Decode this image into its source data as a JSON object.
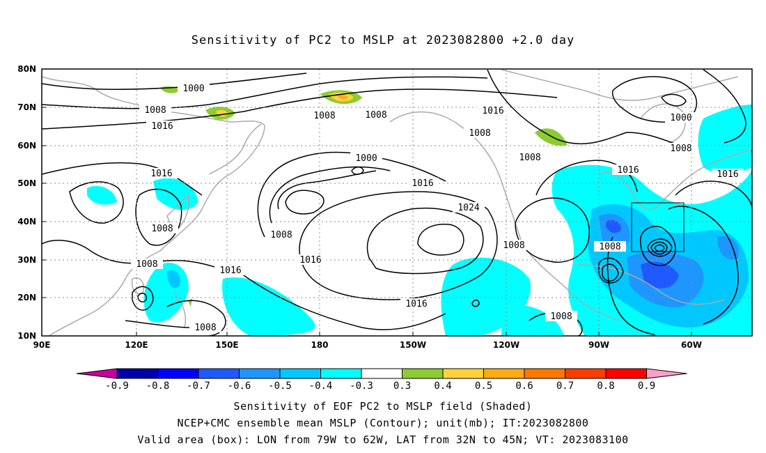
{
  "title": "Sensitivity of PC2 to MSLP at 2023082800 +2.0 day",
  "map": {
    "lon_labels": [
      "90E",
      "120E",
      "150E",
      "180",
      "150W",
      "120W",
      "90W",
      "60W"
    ],
    "lat_labels": [
      "80N",
      "70N",
      "60N",
      "50N",
      "40N",
      "30N",
      "20N",
      "10N"
    ],
    "contour_labels": [
      "1000",
      "1008",
      "1016",
      "1008",
      "1008",
      "1016",
      "1008",
      "1000",
      "1016",
      "1024",
      "1016",
      "1016",
      "1008",
      "1016",
      "1008",
      "1008",
      "1008",
      "1016",
      "1008",
      "1000",
      "1008",
      "1016",
      "1008",
      "1016",
      "1008"
    ],
    "valid_box": {
      "lon": [
        -79,
        -62
      ],
      "lat": [
        32,
        45
      ]
    }
  },
  "colorbar": {
    "labels": [
      "-0.9",
      "-0.8",
      "-0.7",
      "-0.6",
      "-0.5",
      "-0.4",
      "-0.3",
      "0.3",
      "0.4",
      "0.5",
      "0.6",
      "0.7",
      "0.8",
      "0.9"
    ],
    "colors": [
      "#0000aa",
      "#0000ff",
      "#1e5aff",
      "#1e96ff",
      "#00c8ff",
      "#00ffff",
      "#ffffff",
      "#8ccc32",
      "#ffd23c",
      "#ffaa14",
      "#ff7800",
      "#ff3c00",
      "#ff0000"
    ],
    "low_end": "#c800a0",
    "high_end": "#ffa0c8"
  },
  "captions": {
    "line1": "Sensitivity of EOF PC2 to MSLP field (Shaded)",
    "line2": "NCEP+CMC ensemble mean MSLP (Contour); unit(mb); IT:2023082800",
    "line3": "Valid area (box): LON from 79W to 62W, LAT from 32N to 45N; VT: 2023083100"
  }
}
